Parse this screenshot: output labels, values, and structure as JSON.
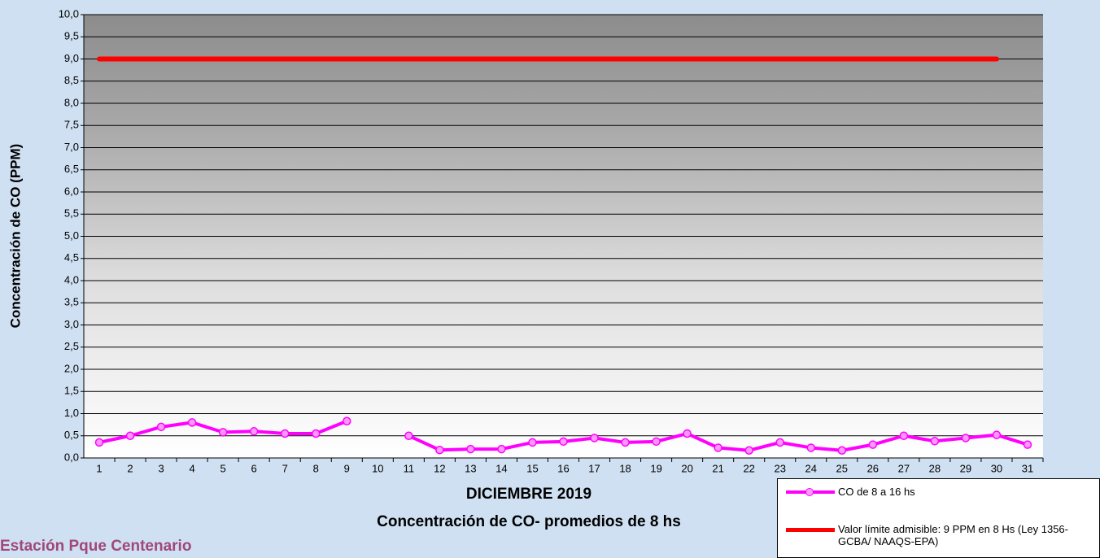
{
  "chart_data": {
    "type": "line",
    "title": "DICIEMBRE 2019",
    "subtitle": "Concentración de CO- promedios de 8 hs",
    "footer": "Estación Pque Centenario",
    "y_label": "Concentración de CO (PPM)",
    "categories": [
      "1",
      "2",
      "3",
      "4",
      "5",
      "6",
      "7",
      "8",
      "9",
      "10",
      "11",
      "12",
      "13",
      "14",
      "15",
      "16",
      "17",
      "18",
      "19",
      "20",
      "21",
      "22",
      "23",
      "24",
      "25",
      "26",
      "27",
      "28",
      "29",
      "30",
      "31"
    ],
    "series": [
      {
        "name": "CO de 8 a 16 hs",
        "color": "#ff00ff",
        "markers": true,
        "values": [
          0.35,
          0.5,
          0.7,
          0.8,
          0.58,
          0.6,
          0.55,
          0.55,
          0.83,
          null,
          0.5,
          0.18,
          0.2,
          0.2,
          0.35,
          0.37,
          0.45,
          0.35,
          0.37,
          0.55,
          0.23,
          0.17,
          0.35,
          0.23,
          0.17,
          0.3,
          0.5,
          0.38,
          0.45,
          0.52,
          0.3
        ]
      },
      {
        "name": "Valor límite admisible: 9 PPM en 8 Hs (Ley 1356-GCBA/ NAAQS-EPA)",
        "color": "#ff0000",
        "markers": false,
        "values": [
          9,
          9,
          9,
          9,
          9,
          9,
          9,
          9,
          9,
          9,
          9,
          9,
          9,
          9,
          9,
          9,
          9,
          9,
          9,
          9,
          9,
          9,
          9,
          9,
          9,
          9,
          9,
          9,
          9,
          9,
          null
        ]
      }
    ],
    "ylim": [
      0,
      10
    ],
    "yticks": [
      {
        "value": 0,
        "label": "0,0"
      },
      {
        "value": 0.5,
        "label": "0,5"
      },
      {
        "value": 1,
        "label": "1,0"
      },
      {
        "value": 1.5,
        "label": "1,5"
      },
      {
        "value": 2,
        "label": "2,0"
      },
      {
        "value": 2.5,
        "label": "2,5"
      },
      {
        "value": 3,
        "label": "3,0"
      },
      {
        "value": 3.5,
        "label": "3,5"
      },
      {
        "value": 4,
        "label": "4,0"
      },
      {
        "value": 4.5,
        "label": "4,5"
      },
      {
        "value": 5,
        "label": "5,0"
      },
      {
        "value": 5.5,
        "label": "5,5"
      },
      {
        "value": 6,
        "label": "6,0"
      },
      {
        "value": 6.5,
        "label": "6,5"
      },
      {
        "value": 7,
        "label": "7,0"
      },
      {
        "value": 7.5,
        "label": "7,5"
      },
      {
        "value": 8,
        "label": "8,0"
      },
      {
        "value": 8.5,
        "label": "8,5"
      },
      {
        "value": 9,
        "label": "9,0"
      },
      {
        "value": 9.5,
        "label": "9,5"
      },
      {
        "value": 10,
        "label": "10,0"
      }
    ],
    "grid": true
  }
}
